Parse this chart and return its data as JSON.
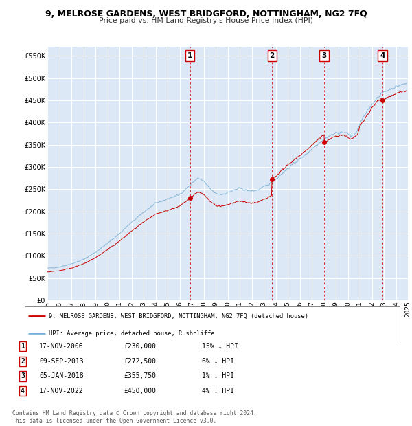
{
  "title": "9, MELROSE GARDENS, WEST BRIDGFORD, NOTTINGHAM, NG2 7FQ",
  "subtitle": "Price paid vs. HM Land Registry's House Price Index (HPI)",
  "ylim": [
    0,
    570000
  ],
  "yticks": [
    0,
    50000,
    100000,
    150000,
    200000,
    250000,
    300000,
    350000,
    400000,
    450000,
    500000,
    550000
  ],
  "plot_bg_color": "#dce8f5",
  "grid_color": "#ffffff",
  "hpi_color": "#7bafd4",
  "price_color": "#cc0000",
  "transactions": [
    {
      "num": 1,
      "date_str": "17-NOV-2006",
      "date_x": 2006.88,
      "price": 230000,
      "pct": "15%",
      "hpi_note": "↓ HPI"
    },
    {
      "num": 2,
      "date_str": "09-SEP-2013",
      "date_x": 2013.69,
      "price": 272500,
      "pct": "6%",
      "hpi_note": "↓ HPI"
    },
    {
      "num": 3,
      "date_str": "05-JAN-2018",
      "date_x": 2018.03,
      "price": 355750,
      "pct": "1%",
      "hpi_note": "↓ HPI"
    },
    {
      "num": 4,
      "date_str": "17-NOV-2022",
      "date_x": 2022.88,
      "price": 450000,
      "pct": "4%",
      "hpi_note": "↓ HPI"
    }
  ],
  "legend_property_label": "9, MELROSE GARDENS, WEST BRIDGFORD, NOTTINGHAM, NG2 7FQ (detached house)",
  "legend_hpi_label": "HPI: Average price, detached house, Rushcliffe",
  "footnote": "Contains HM Land Registry data © Crown copyright and database right 2024.\nThis data is licensed under the Open Government Licence v3.0.",
  "xmin": 1995,
  "xmax": 2025,
  "xticks": [
    1995,
    1996,
    1997,
    1998,
    1999,
    2000,
    2001,
    2002,
    2003,
    2004,
    2005,
    2006,
    2007,
    2008,
    2009,
    2010,
    2011,
    2012,
    2013,
    2014,
    2015,
    2016,
    2017,
    2018,
    2019,
    2020,
    2021,
    2022,
    2023,
    2024,
    2025
  ]
}
